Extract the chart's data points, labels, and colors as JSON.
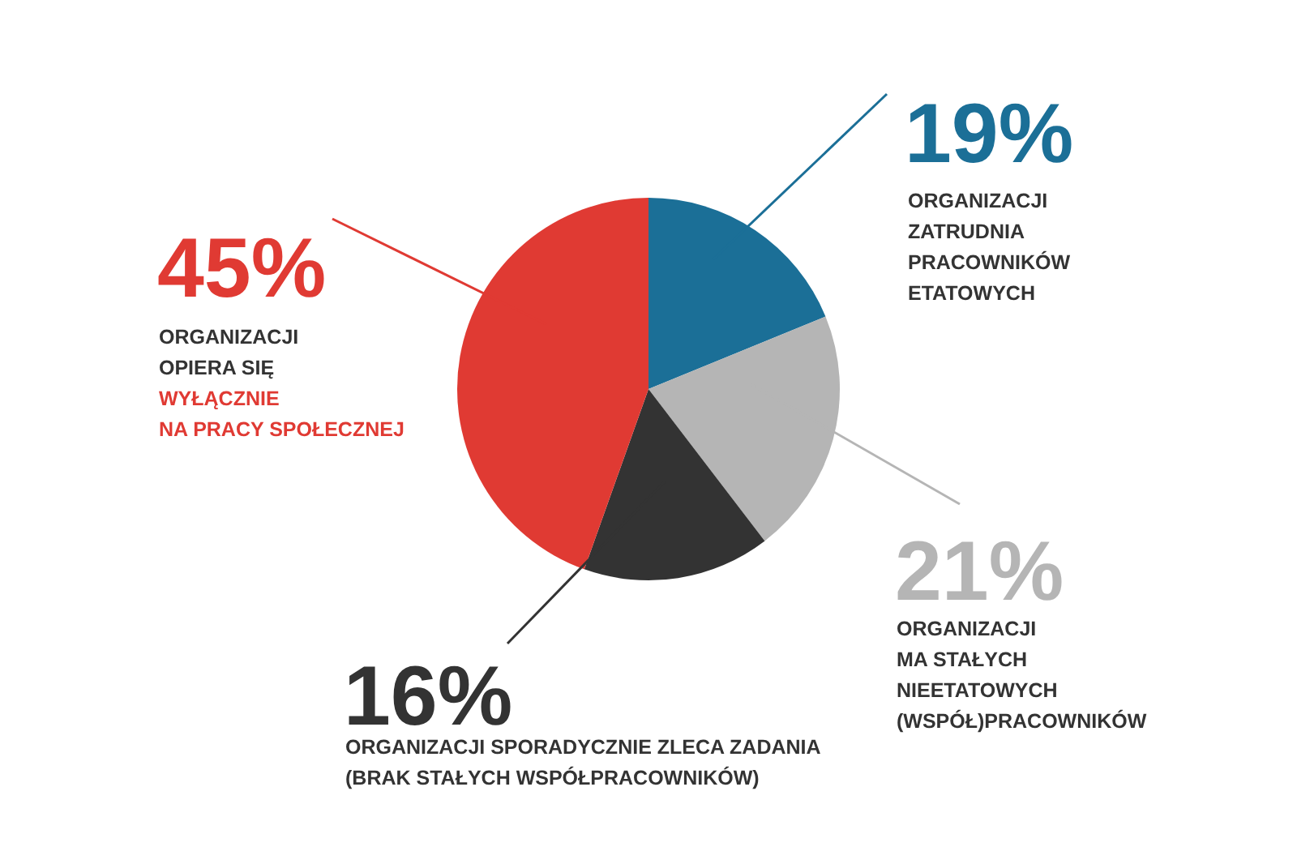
{
  "chart_data": {
    "type": "pie",
    "categories": [
      "ORGANIZACJI\nZATRUDNIA\nPRACOWNIKÓW\nETATOWYCH",
      "ORGANIZACJI\nMA STAŁYCH\nNIEETATOWYCH\n(WSPÓŁ)PRACOWNIKÓW",
      "ORGANIZACJI SPORADYCZNIE ZLECA ZADANIA\n(BRAK STAŁYCH WSPÓŁPRACOWNIKÓW)",
      "ORGANIZACJI\nOPIERA SIĘ\nWYŁĄCZNIE\nNA PRACY SPOŁECZNEJ"
    ],
    "values": [
      19,
      21,
      16,
      45
    ],
    "colors": [
      "#1b6f97",
      "#b5b5b5",
      "#333333",
      "#e03a33"
    ],
    "value_labels": [
      "19%",
      "21%",
      "16%",
      "45%"
    ]
  }
}
